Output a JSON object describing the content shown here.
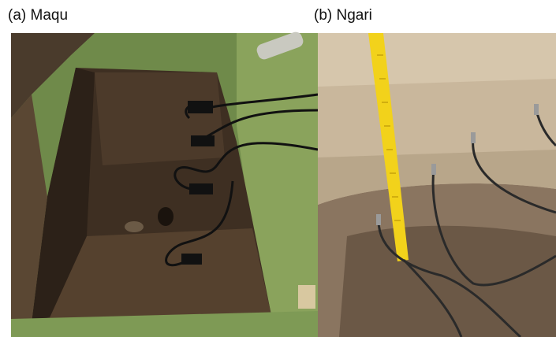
{
  "panels": [
    {
      "caption": "(a) Maqu"
    },
    {
      "caption": "(b) Ngari"
    }
  ]
}
